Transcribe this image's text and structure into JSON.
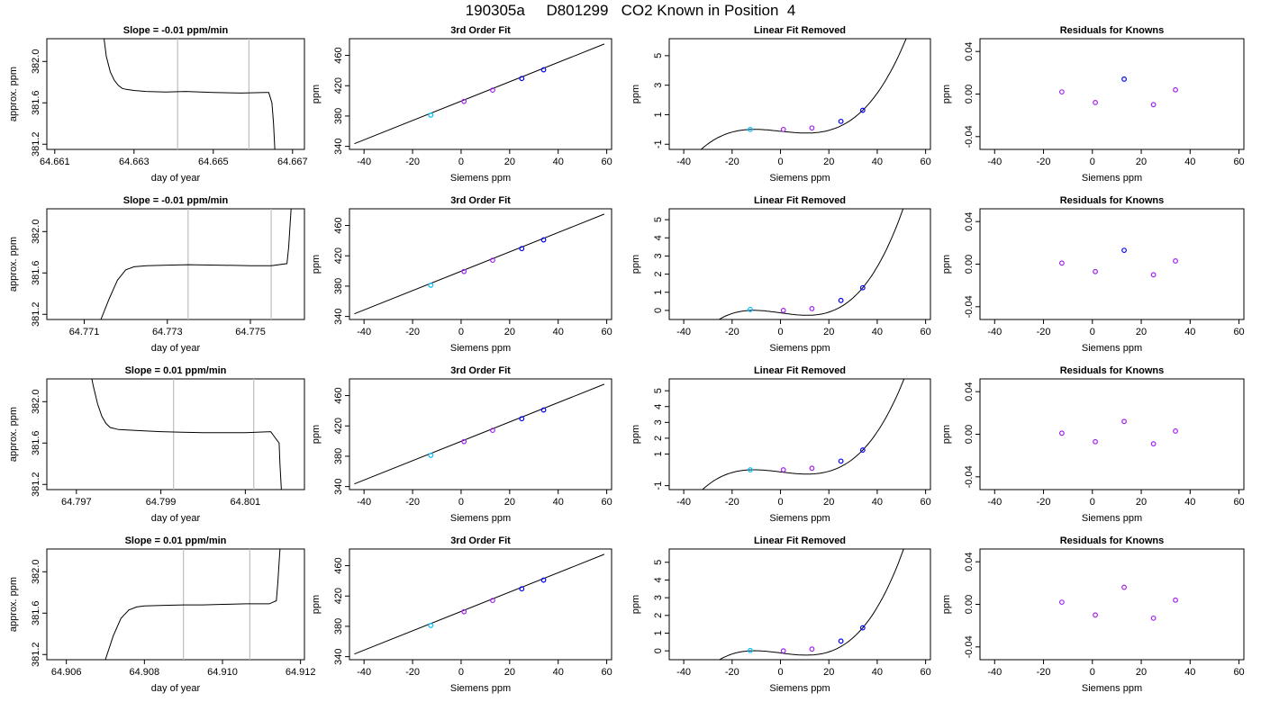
{
  "title": "190305a     D801299   CO2 Known in Position  4",
  "colors": {
    "frame": "#000000",
    "line": "#000000",
    "vline": "#bebebe",
    "point_blue": "#0000ff",
    "point_purple": "#a020f0",
    "point_cyan": "#00bfff"
  },
  "chart_data": [
    {
      "type": "line",
      "row": 0,
      "col": 0,
      "title": "Slope =  -0.01  ppm/min",
      "xlabel": "day of year",
      "ylabel": "approx. ppm",
      "xlim": [
        64.6608,
        64.6673
      ],
      "ylim": [
        381.15,
        382.22
      ],
      "xticks": [
        64.661,
        64.663,
        64.665,
        64.667
      ],
      "xtick_labels": [
        "64.661",
        "64.663",
        "64.665",
        "64.667"
      ],
      "yticks": [
        381.2,
        381.6,
        382.0
      ],
      "ytick_labels": [
        "381.2",
        "381.6",
        "382.0"
      ],
      "vlines": [
        64.6641,
        64.6659
      ],
      "series": [
        {
          "x": [
            64.6622,
            64.6623,
            64.6624,
            64.6625,
            64.6626,
            64.6627,
            64.6628,
            64.663,
            64.6633,
            64.6638,
            64.6643,
            64.665,
            64.6657,
            64.6663,
            64.6664,
            64.66648,
            64.66652,
            64.66656
          ],
          "y": [
            382.35,
            382.05,
            381.9,
            381.82,
            381.77,
            381.74,
            381.73,
            381.72,
            381.71,
            381.705,
            381.71,
            381.7,
            381.695,
            381.7,
            381.7,
            381.6,
            381.4,
            381.1
          ]
        }
      ]
    },
    {
      "type": "line",
      "row": 0,
      "col": 1,
      "title": "3rd Order Fit",
      "xlabel": "Siemens ppm",
      "ylabel": "ppm",
      "xlim": [
        -46,
        62
      ],
      "ylim": [
        336,
        482
      ],
      "xticks": [
        -40,
        -20,
        0,
        20,
        40,
        60
      ],
      "yticks": [
        340,
        380,
        420,
        460
      ],
      "line": {
        "x": [
          -44,
          59
        ],
        "y": [
          343.5,
          475
        ]
      },
      "points": [
        {
          "x": -12.5,
          "y": 381.2,
          "color": "cyan"
        },
        {
          "x": 1.2,
          "y": 399.3,
          "color": "purple"
        },
        {
          "x": 13,
          "y": 414.2,
          "color": "purple"
        },
        {
          "x": 25,
          "y": 429.5,
          "color": "blue"
        },
        {
          "x": 34,
          "y": 441,
          "color": "blue"
        }
      ]
    },
    {
      "type": "line",
      "row": 0,
      "col": 2,
      "title": "Linear Fit Removed",
      "xlabel": "Siemens ppm",
      "ylabel": "ppm",
      "xlim": [
        -46,
        62
      ],
      "ylim": [
        -1.35,
        6.15
      ],
      "xticks": [
        -40,
        -20,
        0,
        20,
        40,
        60
      ],
      "yticks": [
        -1,
        1,
        3,
        5
      ],
      "cubic": {
        "a": 5.12e-05,
        "k": 0.7,
        "r": 0.9,
        "x0": -12.5,
        "x1": 34,
        "y0": 0,
        "y1": 1.3
      },
      "points": [
        {
          "x": -12.5,
          "y": 0.0,
          "color": "cyan"
        },
        {
          "x": 1.2,
          "y": 0.0,
          "color": "purple"
        },
        {
          "x": 13,
          "y": 0.1,
          "color": "purple"
        },
        {
          "x": 25,
          "y": 0.55,
          "color": "blue"
        },
        {
          "x": 34,
          "y": 1.3,
          "color": "blue"
        }
      ]
    },
    {
      "type": "scatter",
      "row": 0,
      "col": 3,
      "title": "Residuals for Knowns",
      "xlabel": "Siemens ppm",
      "ylabel": "ppm",
      "xlim": [
        -46,
        62
      ],
      "ylim": [
        -0.052,
        0.052
      ],
      "xticks": [
        -40,
        -20,
        0,
        20,
        40,
        60
      ],
      "yticks": [
        -0.04,
        0.0,
        0.04
      ],
      "ytick_labels": [
        "-0.04",
        "0.00",
        "0.04"
      ],
      "points": [
        {
          "x": -12.5,
          "y": 0.002,
          "color": "purple"
        },
        {
          "x": 1.2,
          "y": -0.008,
          "color": "purple"
        },
        {
          "x": 13,
          "y": 0.014,
          "color": "blue"
        },
        {
          "x": 25,
          "y": -0.01,
          "color": "purple"
        },
        {
          "x": 34,
          "y": 0.004,
          "color": "purple"
        }
      ]
    },
    {
      "type": "line",
      "row": 1,
      "col": 0,
      "title": "Slope =  -0.01  ppm/min",
      "xlabel": "day of year",
      "ylabel": "approx. ppm",
      "xlim": [
        64.7701,
        64.7763
      ],
      "ylim": [
        381.15,
        382.22
      ],
      "xticks": [
        64.771,
        64.773,
        64.775
      ],
      "xtick_labels": [
        "64.771",
        "64.773",
        "64.775"
      ],
      "vlines": [
        64.7735,
        64.7755
      ],
      "yticks": [
        381.2,
        381.6,
        382.0
      ],
      "ytick_labels": [
        "381.2",
        "381.6",
        "382.0"
      ],
      "series": [
        {
          "x": [
            64.7714,
            64.7716,
            64.7718,
            64.772,
            64.7722,
            64.7725,
            64.773,
            64.7735,
            64.7742,
            64.775,
            64.7755,
            64.77588,
            64.77592,
            64.77596,
            64.776
          ],
          "y": [
            381.15,
            381.35,
            381.53,
            381.63,
            381.66,
            381.67,
            381.675,
            381.68,
            381.675,
            381.67,
            381.67,
            381.69,
            381.85,
            382.1,
            382.35
          ]
        }
      ]
    },
    {
      "type": "line",
      "row": 1,
      "col": 1,
      "title": "3rd Order Fit",
      "xlabel": "Siemens ppm",
      "ylabel": "ppm",
      "xlim": [
        -46,
        62
      ],
      "ylim": [
        336,
        482
      ],
      "xticks": [
        -40,
        -20,
        0,
        20,
        40,
        60
      ],
      "yticks": [
        340,
        380,
        420,
        460
      ],
      "line": {
        "x": [
          -44,
          59
        ],
        "y": [
          343.5,
          475
        ]
      },
      "points": [
        {
          "x": -12.5,
          "y": 381.2,
          "color": "cyan"
        },
        {
          "x": 1.2,
          "y": 399.3,
          "color": "purple"
        },
        {
          "x": 13,
          "y": 414.2,
          "color": "purple"
        },
        {
          "x": 25,
          "y": 429.5,
          "color": "blue"
        },
        {
          "x": 34,
          "y": 441,
          "color": "blue"
        }
      ]
    },
    {
      "type": "line",
      "row": 1,
      "col": 2,
      "title": "Linear Fit Removed",
      "xlabel": "Siemens ppm",
      "ylabel": "ppm",
      "xlim": [
        -46,
        62
      ],
      "ylim": [
        -0.5,
        5.6
      ],
      "xticks": [
        -40,
        -20,
        0,
        20,
        40,
        60
      ],
      "yticks": [
        0,
        1,
        2,
        3,
        4,
        5
      ],
      "cubic": {
        "a": 5.12e-05,
        "k": 0.7,
        "r": 0.9,
        "x0": -12.5,
        "x1": 34,
        "y0": 0,
        "y1": 1.25
      },
      "points": [
        {
          "x": -12.5,
          "y": 0.05,
          "color": "cyan"
        },
        {
          "x": 1.2,
          "y": 0.0,
          "color": "purple"
        },
        {
          "x": 13,
          "y": 0.1,
          "color": "purple"
        },
        {
          "x": 25,
          "y": 0.55,
          "color": "blue"
        },
        {
          "x": 34,
          "y": 1.25,
          "color": "blue"
        }
      ]
    },
    {
      "type": "scatter",
      "row": 1,
      "col": 3,
      "title": "Residuals for Knowns",
      "xlabel": "Siemens ppm",
      "ylabel": "ppm",
      "xlim": [
        -46,
        62
      ],
      "ylim": [
        -0.052,
        0.052
      ],
      "xticks": [
        -40,
        -20,
        0,
        20,
        40,
        60
      ],
      "yticks": [
        -0.04,
        0.0,
        0.04
      ],
      "ytick_labels": [
        "-0.04",
        "0.00",
        "0.04"
      ],
      "points": [
        {
          "x": -12.5,
          "y": 0.001,
          "color": "purple"
        },
        {
          "x": 1.2,
          "y": -0.007,
          "color": "purple"
        },
        {
          "x": 13,
          "y": 0.013,
          "color": "blue"
        },
        {
          "x": 25,
          "y": -0.01,
          "color": "purple"
        },
        {
          "x": 34,
          "y": 0.003,
          "color": "purple"
        }
      ]
    },
    {
      "type": "line",
      "row": 2,
      "col": 0,
      "title": "Slope =  0.01  ppm/min",
      "xlabel": "day of year",
      "ylabel": "approx. ppm",
      "xlim": [
        64.7963,
        64.8024
      ],
      "ylim": [
        381.15,
        382.22
      ],
      "xticks": [
        64.797,
        64.799,
        64.801
      ],
      "xtick_labels": [
        "64.797",
        "64.799",
        "64.801"
      ],
      "vlines": [
        64.7993,
        64.8012
      ],
      "yticks": [
        381.2,
        381.6,
        382.0
      ],
      "ytick_labels": [
        "381.2",
        "381.6",
        "382.0"
      ],
      "series": [
        {
          "x": [
            64.7973,
            64.7974,
            64.7975,
            64.7976,
            64.7977,
            64.7978,
            64.798,
            64.7985,
            64.799,
            64.7995,
            64.8,
            64.801,
            64.8016,
            64.8018,
            64.80182,
            64.80186
          ],
          "y": [
            382.35,
            382.15,
            381.98,
            381.86,
            381.79,
            381.75,
            381.73,
            381.72,
            381.71,
            381.705,
            381.7,
            381.7,
            381.71,
            381.6,
            381.4,
            381.1
          ]
        }
      ]
    },
    {
      "type": "line",
      "row": 2,
      "col": 1,
      "title": "3rd Order Fit",
      "xlabel": "Siemens ppm",
      "ylabel": "ppm",
      "xlim": [
        -46,
        62
      ],
      "ylim": [
        336,
        482
      ],
      "xticks": [
        -40,
        -20,
        0,
        20,
        40,
        60
      ],
      "yticks": [
        340,
        380,
        420,
        460
      ],
      "line": {
        "x": [
          -44,
          59
        ],
        "y": [
          343.5,
          475
        ]
      },
      "points": [
        {
          "x": -12.5,
          "y": 381.2,
          "color": "cyan"
        },
        {
          "x": 1.2,
          "y": 399.3,
          "color": "purple"
        },
        {
          "x": 13,
          "y": 414.2,
          "color": "purple"
        },
        {
          "x": 25,
          "y": 429.5,
          "color": "blue"
        },
        {
          "x": 34,
          "y": 441,
          "color": "blue"
        }
      ]
    },
    {
      "type": "line",
      "row": 2,
      "col": 2,
      "title": "Linear Fit Removed",
      "xlabel": "Siemens ppm",
      "ylabel": "ppm",
      "xlim": [
        -46,
        62
      ],
      "ylim": [
        -1.25,
        5.75
      ],
      "xticks": [
        -40,
        -20,
        0,
        20,
        40,
        60
      ],
      "yticks": [
        -1,
        1,
        2,
        3,
        4,
        5
      ],
      "cubic": {
        "a": 5.12e-05,
        "k": 0.7,
        "r": 0.9,
        "x0": -12.5,
        "x1": 34,
        "y0": 0,
        "y1": 1.25
      },
      "points": [
        {
          "x": -12.5,
          "y": 0.0,
          "color": "cyan"
        },
        {
          "x": 1.2,
          "y": 0.0,
          "color": "purple"
        },
        {
          "x": 13,
          "y": 0.1,
          "color": "purple"
        },
        {
          "x": 25,
          "y": 0.55,
          "color": "blue"
        },
        {
          "x": 34,
          "y": 1.25,
          "color": "blue"
        }
      ]
    },
    {
      "type": "scatter",
      "row": 2,
      "col": 3,
      "title": "Residuals for Knowns",
      "xlabel": "Siemens ppm",
      "ylabel": "ppm",
      "xlim": [
        -46,
        62
      ],
      "ylim": [
        -0.052,
        0.052
      ],
      "xticks": [
        -40,
        -20,
        0,
        20,
        40,
        60
      ],
      "yticks": [
        -0.04,
        0.0,
        0.04
      ],
      "ytick_labels": [
        "-0.04",
        "0.00",
        "0.04"
      ],
      "points": [
        {
          "x": -12.5,
          "y": 0.001,
          "color": "purple"
        },
        {
          "x": 1.2,
          "y": -0.007,
          "color": "purple"
        },
        {
          "x": 13,
          "y": 0.012,
          "color": "purple"
        },
        {
          "x": 25,
          "y": -0.009,
          "color": "purple"
        },
        {
          "x": 34,
          "y": 0.003,
          "color": "purple"
        }
      ]
    },
    {
      "type": "line",
      "row": 3,
      "col": 0,
      "title": "Slope =  0.01  ppm/min",
      "xlabel": "day of year",
      "ylabel": "approx. ppm",
      "xlim": [
        64.9055,
        64.9121
      ],
      "ylim": [
        381.15,
        382.22
      ],
      "xticks": [
        64.906,
        64.908,
        64.91,
        64.912
      ],
      "xtick_labels": [
        "64.906",
        "64.908",
        "64.910",
        "64.912"
      ],
      "vlines": [
        64.909,
        64.9107
      ],
      "yticks": [
        381.2,
        381.6,
        382.0
      ],
      "ytick_labels": [
        "381.2",
        "381.6",
        "382.0"
      ],
      "series": [
        {
          "x": [
            64.907,
            64.9072,
            64.9074,
            64.9076,
            64.9078,
            64.908,
            64.9085,
            64.909,
            64.9095,
            64.91,
            64.9106,
            64.9112,
            64.91138,
            64.91142,
            64.91146,
            64.9115
          ],
          "y": [
            381.15,
            381.38,
            381.55,
            381.63,
            381.66,
            381.67,
            381.675,
            381.68,
            381.68,
            381.685,
            381.69,
            381.69,
            381.72,
            381.9,
            382.15,
            382.35
          ]
        }
      ]
    },
    {
      "type": "line",
      "row": 3,
      "col": 1,
      "title": "3rd Order Fit",
      "xlabel": "Siemens ppm",
      "ylabel": "ppm",
      "xlim": [
        -46,
        62
      ],
      "ylim": [
        336,
        482
      ],
      "xticks": [
        -40,
        -20,
        0,
        20,
        40,
        60
      ],
      "yticks": [
        340,
        380,
        420,
        460
      ],
      "line": {
        "x": [
          -44,
          59
        ],
        "y": [
          343.5,
          475
        ]
      },
      "points": [
        {
          "x": -12.5,
          "y": 381.2,
          "color": "cyan"
        },
        {
          "x": 1.2,
          "y": 399.3,
          "color": "purple"
        },
        {
          "x": 13,
          "y": 414.2,
          "color": "purple"
        },
        {
          "x": 25,
          "y": 429.5,
          "color": "blue"
        },
        {
          "x": 34,
          "y": 441,
          "color": "blue"
        }
      ]
    },
    {
      "type": "line",
      "row": 3,
      "col": 2,
      "title": "Linear Fit Removed",
      "xlabel": "Siemens ppm",
      "ylabel": "ppm",
      "xlim": [
        -46,
        62
      ],
      "ylim": [
        -0.5,
        5.75
      ],
      "xticks": [
        -40,
        -20,
        0,
        20,
        40,
        60
      ],
      "yticks": [
        0,
        1,
        2,
        3,
        4,
        5
      ],
      "cubic": {
        "a": 5.12e-05,
        "k": 0.7,
        "r": 0.9,
        "x0": -12.5,
        "x1": 34,
        "y0": 0,
        "y1": 1.3
      },
      "points": [
        {
          "x": -12.5,
          "y": 0.02,
          "color": "cyan"
        },
        {
          "x": 1.2,
          "y": 0.0,
          "color": "purple"
        },
        {
          "x": 13,
          "y": 0.1,
          "color": "purple"
        },
        {
          "x": 25,
          "y": 0.55,
          "color": "blue"
        },
        {
          "x": 34,
          "y": 1.3,
          "color": "blue"
        }
      ]
    },
    {
      "type": "scatter",
      "row": 3,
      "col": 3,
      "title": "Residuals for Knowns",
      "xlabel": "Siemens ppm",
      "ylabel": "ppm",
      "xlim": [
        -46,
        62
      ],
      "ylim": [
        -0.052,
        0.052
      ],
      "xticks": [
        -40,
        -20,
        0,
        20,
        40,
        60
      ],
      "yticks": [
        -0.04,
        0.0,
        0.04
      ],
      "ytick_labels": [
        "-0.04",
        "0.00",
        "0.04"
      ],
      "points": [
        {
          "x": -12.5,
          "y": 0.002,
          "color": "purple"
        },
        {
          "x": 1.2,
          "y": -0.01,
          "color": "purple"
        },
        {
          "x": 13,
          "y": 0.016,
          "color": "purple"
        },
        {
          "x": 25,
          "y": -0.013,
          "color": "purple"
        },
        {
          "x": 34,
          "y": 0.004,
          "color": "purple"
        }
      ]
    }
  ]
}
